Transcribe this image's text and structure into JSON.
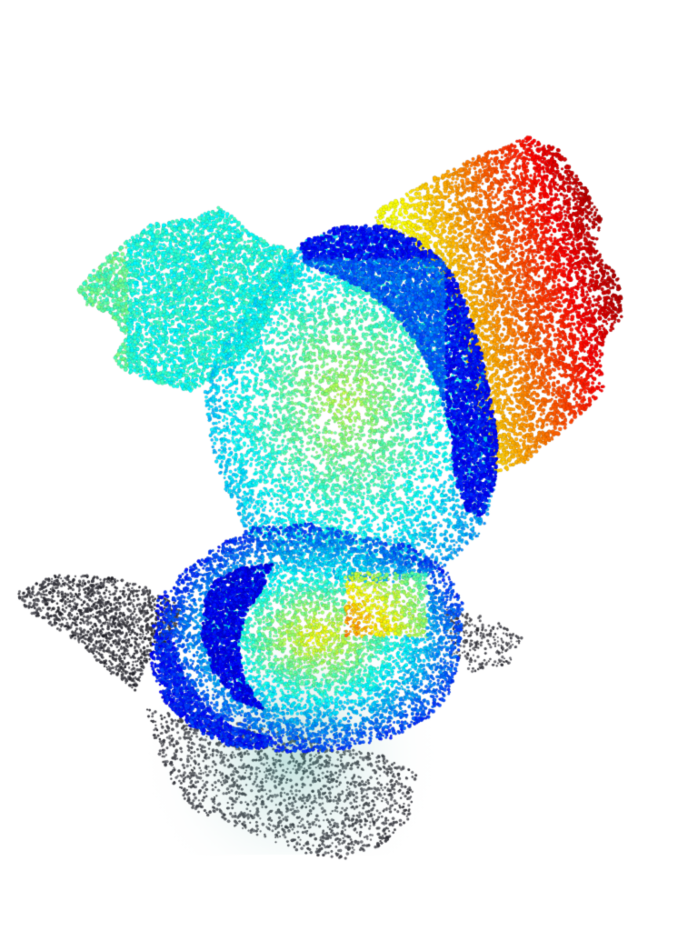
{
  "scene": {
    "subject": "point-cloud-gargoyle",
    "colormap": "jet",
    "colors": {
      "background": "#ffffff",
      "shadow": "#3c3c3c",
      "deep_blue": "#1f2fd6",
      "cyan": "#58d8e8",
      "yellow": "#f2d23a",
      "orange": "#f08a24",
      "red": "#e02a1c"
    }
  }
}
